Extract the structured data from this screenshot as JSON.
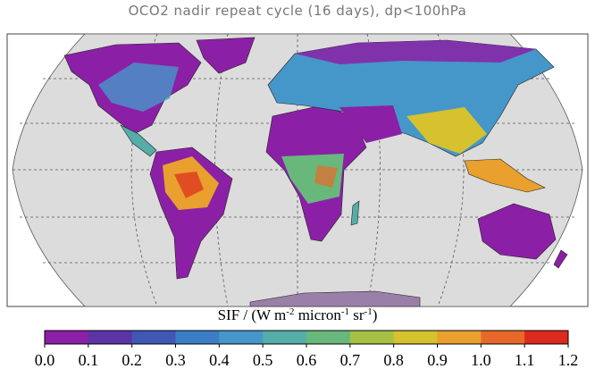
{
  "title": "OCO2 nadir repeat cycle (16 days), dp<100hPa",
  "colorbar": {
    "label_parts": [
      "SIF / (W m",
      "-2",
      " micron",
      "-1",
      " sr",
      "-1",
      ")"
    ],
    "lim": [
      0,
      1.2
    ],
    "ticks": [
      {
        "value": 0,
        "label": "0.0"
      },
      {
        "value": 0.1,
        "label": "0.1"
      },
      {
        "value": 0.2,
        "label": "0.2"
      },
      {
        "value": 0.3,
        "label": "0.3"
      },
      {
        "value": 0.4,
        "label": "0.4"
      },
      {
        "value": 0.5,
        "label": "0.5"
      },
      {
        "value": 0.6,
        "label": "0.6"
      },
      {
        "value": 0.7,
        "label": "0.7"
      },
      {
        "value": 0.8,
        "label": "0.8"
      },
      {
        "value": 0.9,
        "label": "0.9"
      },
      {
        "value": 1,
        "label": "1.0"
      },
      {
        "value": 1.1,
        "label": "1.1"
      },
      {
        "value": 1.2,
        "label": "1.2"
      }
    ],
    "colors": [
      "#8b20a6",
      "#5b35a8",
      "#3f58b6",
      "#3b7ec6",
      "#4697c9",
      "#55ada8",
      "#68b87c",
      "#a6c043",
      "#d6c12f",
      "#e9a02e",
      "#e8682a",
      "#dd2a1f"
    ]
  }
}
